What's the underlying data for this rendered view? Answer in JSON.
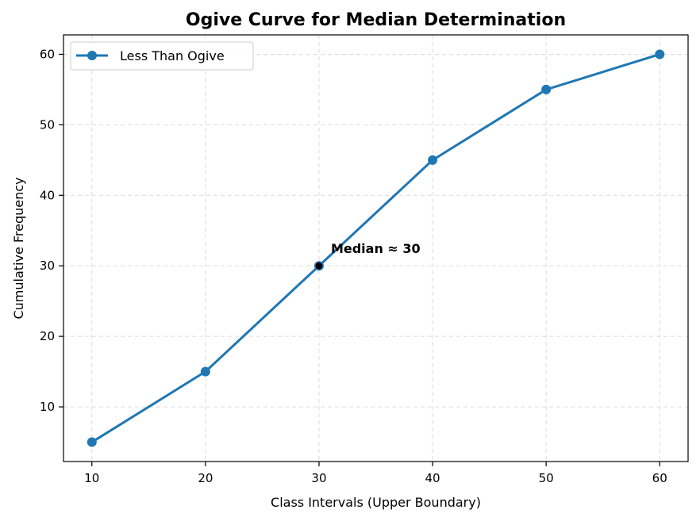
{
  "chart_data": {
    "type": "line",
    "title": "Ogive Curve for Median Determination",
    "xlabel": "Class Intervals (Upper Boundary)",
    "ylabel": "Cumulative Frequency",
    "x": [
      10,
      20,
      30,
      40,
      50,
      60
    ],
    "series": [
      {
        "name": "Less Than Ogive",
        "values": [
          5,
          15,
          30,
          45,
          55,
          60
        ],
        "color": "#1f77b4"
      }
    ],
    "xlim": [
      7.5,
      62.5
    ],
    "ylim": [
      2.25,
      62.75
    ],
    "xticks": [
      10,
      20,
      30,
      40,
      50,
      60
    ],
    "yticks": [
      10,
      20,
      30,
      40,
      50,
      60
    ],
    "grid": true,
    "legend_position": "top-left",
    "annotations": [
      {
        "text": "Median ≈ 30",
        "x": 30,
        "y": 30,
        "marker_color": "#000000"
      }
    ]
  }
}
